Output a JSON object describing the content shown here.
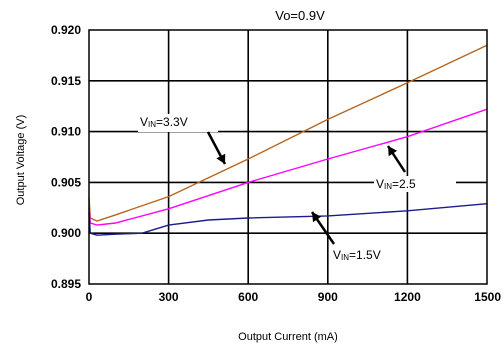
{
  "chart_data": {
    "type": "line",
    "title": "Vo=0.9V",
    "xlabel": "Output Current (mA)",
    "ylabel": "Output Voltage (V)",
    "xlim": [
      0,
      1500
    ],
    "ylim": [
      0.895,
      0.92
    ],
    "x_ticks": [
      "0",
      "300",
      "600",
      "900",
      "1200",
      "1500"
    ],
    "y_ticks": [
      "0.895",
      "0.900",
      "0.905",
      "0.910",
      "0.915",
      "0.920"
    ],
    "grid": true,
    "series": [
      {
        "name": "VIN=3.3V",
        "color": "#b5651d",
        "points": [
          [
            0,
            0.9035
          ],
          [
            5,
            0.9015
          ],
          [
            30,
            0.9012
          ],
          [
            100,
            0.9018
          ],
          [
            300,
            0.9036
          ],
          [
            600,
            0.9073
          ],
          [
            900,
            0.9112
          ],
          [
            1200,
            0.9148
          ],
          [
            1500,
            0.9185
          ]
        ]
      },
      {
        "name": "VIN=2.5",
        "color": "#ff00ff",
        "points": [
          [
            0,
            0.9025
          ],
          [
            5,
            0.901
          ],
          [
            30,
            0.9008
          ],
          [
            100,
            0.901
          ],
          [
            300,
            0.9024
          ],
          [
            600,
            0.905
          ],
          [
            900,
            0.9073
          ],
          [
            1200,
            0.9095
          ],
          [
            1500,
            0.9122
          ]
        ]
      },
      {
        "name": "VIN=1.5V",
        "color": "#1c1c8c",
        "points": [
          [
            0,
            0.902
          ],
          [
            5,
            0.9
          ],
          [
            30,
            0.8998
          ],
          [
            100,
            0.8999
          ],
          [
            200,
            0.9
          ],
          [
            300,
            0.9008
          ],
          [
            450,
            0.9013
          ],
          [
            600,
            0.9015
          ],
          [
            900,
            0.9017
          ],
          [
            1200,
            0.9022
          ],
          [
            1500,
            0.9029
          ]
        ]
      }
    ],
    "annotations": [
      {
        "label_main": "V",
        "label_sub": "IN",
        "label_rest": "=3.3V",
        "series": "VIN=3.3V"
      },
      {
        "label_main": "V",
        "label_sub": "IN",
        "label_rest": "=2.5",
        "series": "VIN=2.5"
      },
      {
        "label_main": "V",
        "label_sub": "IN",
        "label_rest": "=1.5V",
        "series": "VIN=1.5V"
      }
    ]
  }
}
